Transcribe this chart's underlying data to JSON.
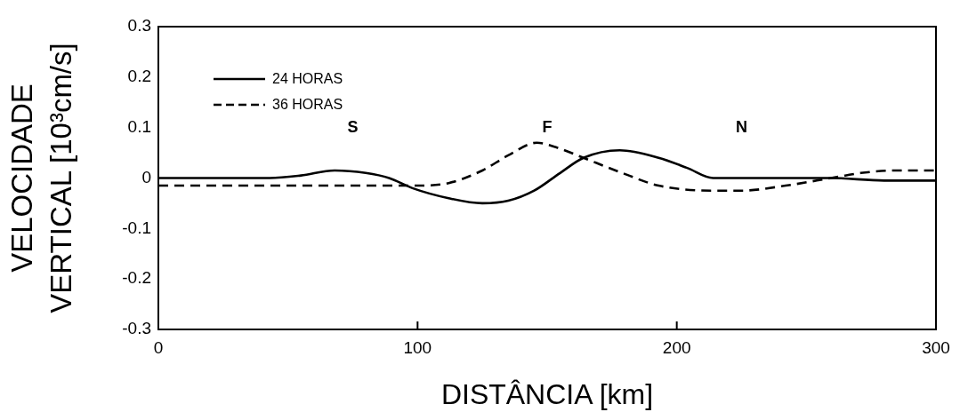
{
  "chart_data": {
    "type": "line",
    "xlabel": "DISTÂNCIA [km]",
    "ylabel": "VELOCIDADE VERTICAL [10³cm/s]",
    "xlim": [
      0,
      300
    ],
    "xticks": [
      0,
      100,
      200,
      300
    ],
    "ylim": [
      -0.3,
      0.3
    ],
    "yticks": [
      -0.3,
      -0.2,
      -0.1,
      0,
      0.1,
      0.2,
      0.3
    ],
    "legend": "top left",
    "annotations": [
      "S",
      "F",
      "N"
    ],
    "series": [
      {
        "name": "24 HORAS",
        "color": "#000000",
        "line_style": "solid",
        "x": [
          0,
          20,
          43,
          55,
          68,
          80,
          89,
          98,
          112,
          125,
          135,
          145,
          155,
          164,
          178,
          193,
          204,
          214,
          237,
          259,
          280,
          300
        ],
        "values": [
          0,
          0,
          0,
          0.005,
          0.015,
          0.01,
          0,
          -0.02,
          -0.04,
          -0.05,
          -0.045,
          -0.025,
          0.01,
          0.04,
          0.055,
          0.04,
          0.02,
          0,
          0,
          0,
          -0.005,
          -0.005
        ]
      },
      {
        "name": "36 HORAS",
        "color": "#000000",
        "line_style": "dashed",
        "x": [
          0,
          43,
          89,
          100,
          112,
          125,
          135,
          146,
          154,
          164,
          179,
          193,
          214,
          225,
          242,
          254,
          265,
          271,
          285,
          300
        ],
        "values": [
          -0.015,
          -0.015,
          -0.015,
          -0.015,
          -0.01,
          0.015,
          0.045,
          0.07,
          0.06,
          0.04,
          0.01,
          -0.015,
          -0.025,
          -0.025,
          -0.015,
          -0.005,
          0.005,
          0.01,
          0.015,
          0.015
        ]
      }
    ]
  }
}
